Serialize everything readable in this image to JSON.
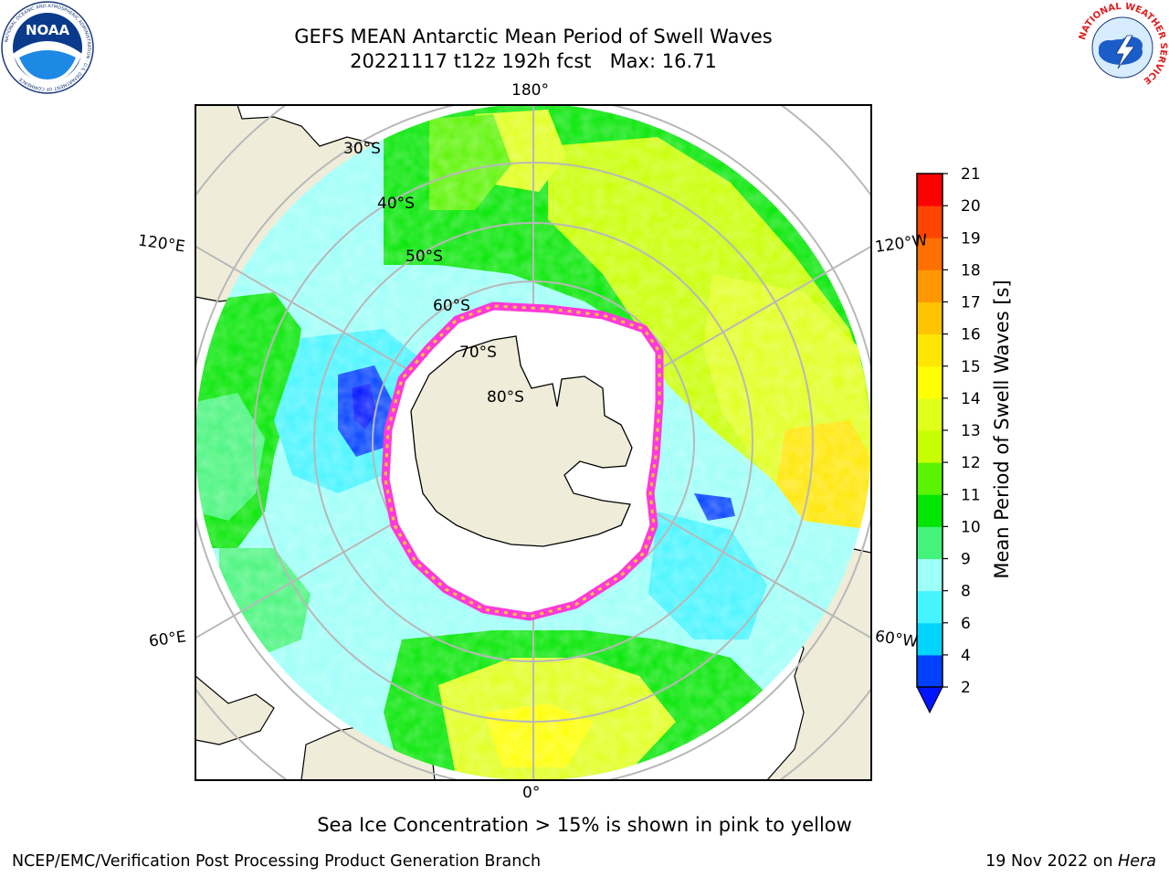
{
  "header": {
    "title_line1": "GEFS MEAN Antarctic Mean Period of Swell Waves",
    "title_line2": "20221117 t12z 192h fcst   Max: 16.71"
  },
  "logos": {
    "left": "noaa-logo",
    "left_text": "NOAA",
    "left_ring_text": "NATIONAL OCEANIC AND ATMOSPHERIC ADMINISTRATION · U.S. DEPARTMENT OF COMMERCE",
    "right": "national-weather-service-logo",
    "right_ring_text": "NATIONAL WEATHER SERVICE"
  },
  "map": {
    "projection": "south-polar-stereographic",
    "longitude_labels": [
      "180°",
      "0°",
      "120°E",
      "120°W",
      "60°E",
      "60°W"
    ],
    "latitude_labels": [
      "30°S",
      "40°S",
      "50°S",
      "60°S",
      "70°S",
      "80°S"
    ],
    "colors": {
      "land": "#efedda",
      "ice_interior": "#ffffff",
      "ice_edge_pink": "#ff3ad8",
      "ice_edge_yellow": "#ffc83c",
      "grid": "#b8b8b8"
    }
  },
  "colorbar": {
    "label": "Mean Period of Swell Waves [s]",
    "ticks": [
      "2",
      "4",
      "6",
      "8",
      "9",
      "10",
      "11",
      "12",
      "13",
      "14",
      "15",
      "16",
      "17",
      "18",
      "19",
      "20",
      "21"
    ],
    "colors": [
      "#0040ff",
      "#00d4ff",
      "#44f4ff",
      "#9cfff8",
      "#44f47a",
      "#00e600",
      "#5af400",
      "#c8ff00",
      "#e0ff1a",
      "#ffff00",
      "#ffe600",
      "#ffc400",
      "#ff9800",
      "#ff7000",
      "#ff4400",
      "#ff0000"
    ],
    "extend_color": "#0014ff",
    "extend": "min"
  },
  "note": "Sea Ice Concentration > 15% is shown in pink to yellow",
  "footer": {
    "left": "NCEP/EMC/Verification Post Processing Product Generation Branch",
    "date": "19 Nov 2022 on ",
    "machine": "Hera"
  }
}
